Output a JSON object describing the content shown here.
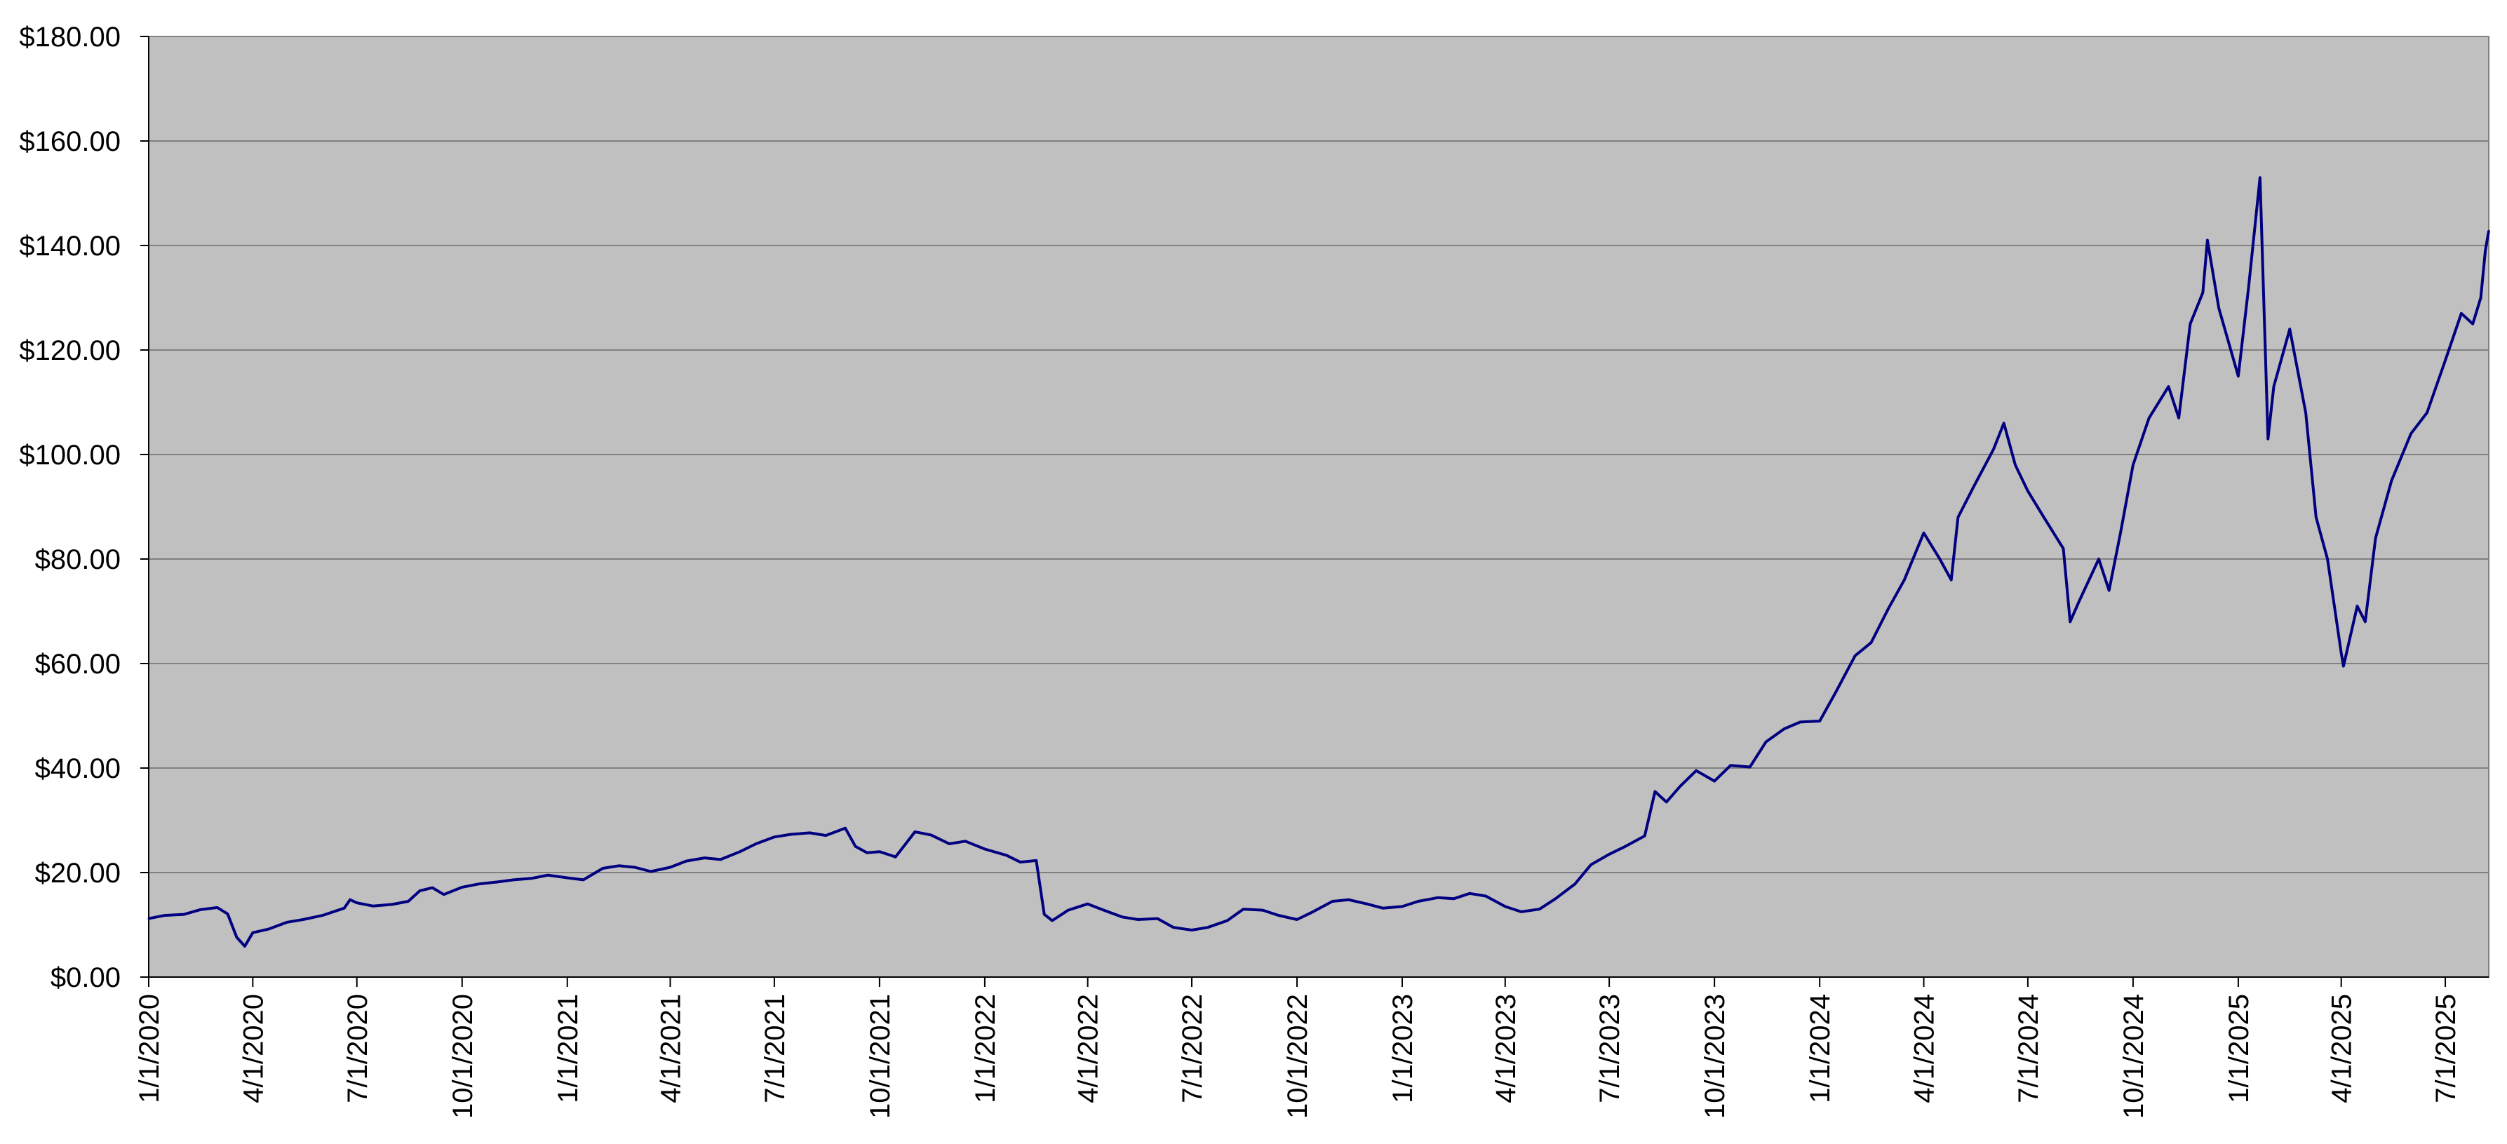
{
  "chart_data": {
    "type": "line",
    "title": "",
    "xlabel": "",
    "ylabel": "",
    "ylim": [
      0,
      180
    ],
    "xlim": [
      "2020-01-01",
      "2025-08-08"
    ],
    "grid": true,
    "legend": "none",
    "colors": {
      "plot_background": "#c0c0c0",
      "line": "#000080",
      "gridline": "#808080",
      "axis": "#000000"
    },
    "y_ticks": [
      {
        "value": 0,
        "label": "$0.00"
      },
      {
        "value": 20,
        "label": "$20.00"
      },
      {
        "value": 40,
        "label": "$40.00"
      },
      {
        "value": 60,
        "label": "$60.00"
      },
      {
        "value": 80,
        "label": "$80.00"
      },
      {
        "value": 100,
        "label": "$100.00"
      },
      {
        "value": 120,
        "label": "$120.00"
      },
      {
        "value": 140,
        "label": "$140.00"
      },
      {
        "value": 160,
        "label": "$160.00"
      },
      {
        "value": 180,
        "label": "$180.00"
      }
    ],
    "x_ticks": [
      {
        "date": "2020-01-01",
        "label": "1/1/2020"
      },
      {
        "date": "2020-04-01",
        "label": "4/1/2020"
      },
      {
        "date": "2020-07-01",
        "label": "7/1/2020"
      },
      {
        "date": "2020-10-01",
        "label": "10/1/2020"
      },
      {
        "date": "2021-01-01",
        "label": "1/1/2021"
      },
      {
        "date": "2021-04-01",
        "label": "4/1/2021"
      },
      {
        "date": "2021-07-01",
        "label": "7/1/2021"
      },
      {
        "date": "2021-10-01",
        "label": "10/1/2021"
      },
      {
        "date": "2022-01-01",
        "label": "1/1/2022"
      },
      {
        "date": "2022-04-01",
        "label": "4/1/2022"
      },
      {
        "date": "2022-07-01",
        "label": "7/1/2022"
      },
      {
        "date": "2022-10-01",
        "label": "10/1/2022"
      },
      {
        "date": "2023-01-01",
        "label": "1/1/2023"
      },
      {
        "date": "2023-04-01",
        "label": "4/1/2023"
      },
      {
        "date": "2023-07-01",
        "label": "7/1/2023"
      },
      {
        "date": "2023-10-01",
        "label": "10/1/2023"
      },
      {
        "date": "2024-01-01",
        "label": "1/1/2024"
      },
      {
        "date": "2024-04-01",
        "label": "4/1/2024"
      },
      {
        "date": "2024-07-01",
        "label": "7/1/2024"
      },
      {
        "date": "2024-10-01",
        "label": "10/1/2024"
      },
      {
        "date": "2025-01-01",
        "label": "1/1/2025"
      },
      {
        "date": "2025-04-01",
        "label": "4/1/2025"
      },
      {
        "date": "2025-07-01",
        "label": "7/1/2025"
      }
    ],
    "series": [
      {
        "points": [
          [
            "2020-01-01",
            11.2
          ],
          [
            "2020-01-15",
            11.8
          ],
          [
            "2020-02-01",
            12.0
          ],
          [
            "2020-02-15",
            12.9
          ],
          [
            "2020-03-01",
            13.3
          ],
          [
            "2020-03-10",
            12.1
          ],
          [
            "2020-03-18",
            7.6
          ],
          [
            "2020-03-25",
            5.9
          ],
          [
            "2020-04-01",
            8.5
          ],
          [
            "2020-04-15",
            9.2
          ],
          [
            "2020-05-01",
            10.5
          ],
          [
            "2020-05-15",
            11.0
          ],
          [
            "2020-06-01",
            11.8
          ],
          [
            "2020-06-20",
            13.2
          ],
          [
            "2020-06-25",
            14.8
          ],
          [
            "2020-07-01",
            14.2
          ],
          [
            "2020-07-15",
            13.6
          ],
          [
            "2020-08-01",
            13.9
          ],
          [
            "2020-08-15",
            14.5
          ],
          [
            "2020-08-25",
            16.5
          ],
          [
            "2020-09-05",
            17.1
          ],
          [
            "2020-09-15",
            15.8
          ],
          [
            "2020-10-01",
            17.2
          ],
          [
            "2020-10-15",
            17.8
          ],
          [
            "2020-11-01",
            18.2
          ],
          [
            "2020-11-15",
            18.6
          ],
          [
            "2020-12-01",
            18.9
          ],
          [
            "2020-12-15",
            19.5
          ],
          [
            "2021-01-01",
            19.0
          ],
          [
            "2021-01-15",
            18.6
          ],
          [
            "2021-02-01",
            20.8
          ],
          [
            "2021-02-15",
            21.3
          ],
          [
            "2021-03-01",
            21.0
          ],
          [
            "2021-03-15",
            20.2
          ],
          [
            "2021-04-01",
            21.0
          ],
          [
            "2021-04-15",
            22.2
          ],
          [
            "2021-05-01",
            22.8
          ],
          [
            "2021-05-15",
            22.5
          ],
          [
            "2021-06-01",
            24.0
          ],
          [
            "2021-06-15",
            25.5
          ],
          [
            "2021-07-01",
            26.8
          ],
          [
            "2021-07-15",
            27.3
          ],
          [
            "2021-08-01",
            27.6
          ],
          [
            "2021-08-15",
            27.1
          ],
          [
            "2021-09-01",
            28.5
          ],
          [
            "2021-09-10",
            25.0
          ],
          [
            "2021-09-20",
            23.8
          ],
          [
            "2021-10-01",
            24.0
          ],
          [
            "2021-10-15",
            23.0
          ],
          [
            "2021-11-01",
            27.8
          ],
          [
            "2021-11-15",
            27.2
          ],
          [
            "2021-12-01",
            25.5
          ],
          [
            "2021-12-15",
            26.0
          ],
          [
            "2022-01-01",
            24.5
          ],
          [
            "2022-01-20",
            23.3
          ],
          [
            "2022-02-01",
            22.0
          ],
          [
            "2022-02-15",
            22.3
          ],
          [
            "2022-02-22",
            12.0
          ],
          [
            "2022-03-01",
            10.8
          ],
          [
            "2022-03-15",
            12.8
          ],
          [
            "2022-04-01",
            14.0
          ],
          [
            "2022-04-15",
            12.8
          ],
          [
            "2022-05-01",
            11.5
          ],
          [
            "2022-05-15",
            11.0
          ],
          [
            "2022-06-01",
            11.2
          ],
          [
            "2022-06-15",
            9.5
          ],
          [
            "2022-07-01",
            9.0
          ],
          [
            "2022-07-15",
            9.5
          ],
          [
            "2022-08-01",
            10.8
          ],
          [
            "2022-08-15",
            13.0
          ],
          [
            "2022-09-01",
            12.8
          ],
          [
            "2022-09-15",
            11.8
          ],
          [
            "2022-10-01",
            11.0
          ],
          [
            "2022-10-15",
            12.5
          ],
          [
            "2022-11-01",
            14.5
          ],
          [
            "2022-11-15",
            14.8
          ],
          [
            "2022-12-01",
            14.0
          ],
          [
            "2022-12-15",
            13.2
          ],
          [
            "2023-01-01",
            13.5
          ],
          [
            "2023-01-15",
            14.5
          ],
          [
            "2023-02-01",
            15.2
          ],
          [
            "2023-02-15",
            15.0
          ],
          [
            "2023-03-01",
            16.0
          ],
          [
            "2023-03-15",
            15.5
          ],
          [
            "2023-04-01",
            13.5
          ],
          [
            "2023-04-15",
            12.5
          ],
          [
            "2023-05-01",
            13.0
          ],
          [
            "2023-05-15",
            15.0
          ],
          [
            "2023-06-01",
            17.8
          ],
          [
            "2023-06-15",
            21.5
          ],
          [
            "2023-07-01",
            23.5
          ],
          [
            "2023-07-15",
            25.0
          ],
          [
            "2023-08-01",
            27.0
          ],
          [
            "2023-08-10",
            35.5
          ],
          [
            "2023-08-20",
            33.5
          ],
          [
            "2023-09-01",
            36.5
          ],
          [
            "2023-09-15",
            39.5
          ],
          [
            "2023-10-01",
            37.5
          ],
          [
            "2023-10-15",
            40.5
          ],
          [
            "2023-11-01",
            40.2
          ],
          [
            "2023-11-15",
            45.0
          ],
          [
            "2023-12-01",
            47.5
          ],
          [
            "2023-12-15",
            48.8
          ],
          [
            "2024-01-01",
            49.0
          ],
          [
            "2024-01-15",
            54.5
          ],
          [
            "2024-02-01",
            61.5
          ],
          [
            "2024-02-15",
            64.0
          ],
          [
            "2024-03-01",
            70.5
          ],
          [
            "2024-03-15",
            76.0
          ],
          [
            "2024-04-01",
            85.0
          ],
          [
            "2024-04-15",
            80.0
          ],
          [
            "2024-04-25",
            76.0
          ],
          [
            "2024-05-01",
            88.0
          ],
          [
            "2024-05-15",
            94.0
          ],
          [
            "2024-06-01",
            101.0
          ],
          [
            "2024-06-10",
            106.0
          ],
          [
            "2024-06-20",
            98.0
          ],
          [
            "2024-07-01",
            93.0
          ],
          [
            "2024-07-15",
            88.0
          ],
          [
            "2024-08-01",
            82.0
          ],
          [
            "2024-08-07",
            68.0
          ],
          [
            "2024-08-15",
            72.0
          ],
          [
            "2024-09-01",
            80.0
          ],
          [
            "2024-09-10",
            74.0
          ],
          [
            "2024-09-20",
            85.0
          ],
          [
            "2024-10-01",
            98.0
          ],
          [
            "2024-10-15",
            107.0
          ],
          [
            "2024-11-01",
            113.0
          ],
          [
            "2024-11-10",
            107.0
          ],
          [
            "2024-11-20",
            125.0
          ],
          [
            "2024-12-01",
            131.0
          ],
          [
            "2024-12-05",
            141.0
          ],
          [
            "2024-12-15",
            128.0
          ],
          [
            "2025-01-01",
            115.0
          ],
          [
            "2025-01-10",
            132.0
          ],
          [
            "2025-01-20",
            153.0
          ],
          [
            "2025-01-27",
            103.0
          ],
          [
            "2025-02-01",
            113.0
          ],
          [
            "2025-02-15",
            124.0
          ],
          [
            "2025-03-01",
            108.0
          ],
          [
            "2025-03-10",
            88.0
          ],
          [
            "2025-03-20",
            80.0
          ],
          [
            "2025-04-01",
            62.0
          ],
          [
            "2025-04-03",
            59.5
          ],
          [
            "2025-04-15",
            71.0
          ],
          [
            "2025-04-22",
            68.0
          ],
          [
            "2025-05-01",
            84.0
          ],
          [
            "2025-05-15",
            95.0
          ],
          [
            "2025-06-01",
            104.0
          ],
          [
            "2025-06-15",
            108.0
          ],
          [
            "2025-07-01",
            118.0
          ],
          [
            "2025-07-15",
            127.0
          ],
          [
            "2025-07-25",
            125.0
          ],
          [
            "2025-08-01",
            130.0
          ],
          [
            "2025-08-05",
            139.0
          ],
          [
            "2025-08-08",
            142.8
          ]
        ]
      }
    ]
  }
}
